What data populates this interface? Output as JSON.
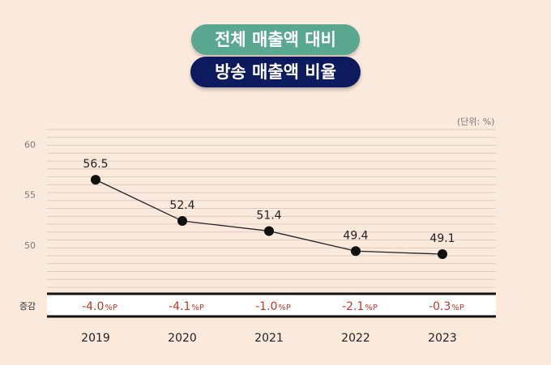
{
  "title_line1": "전체 매출액 대비",
  "title_line2": "방송 매출액 비율",
  "unit_label": "(단위: %)",
  "change_row_label": "증감",
  "change_unit": "%P",
  "chart_data": {
    "type": "line",
    "title": "전체 매출액 대비 방송 매출액 비율",
    "categories": [
      "2019",
      "2020",
      "2021",
      "2022",
      "2023"
    ],
    "series": [
      {
        "values": [
          56.5,
          52.4,
          51.4,
          49.4,
          49.1
        ]
      }
    ],
    "changes": [
      "-4.0",
      "-4.1",
      "-1.0",
      "-2.1",
      "-0.3"
    ],
    "yticks": [
      50,
      55,
      60
    ],
    "ylim": [
      45.8,
      61.5
    ],
    "grid": true,
    "colors": {
      "line": "#222222",
      "point": "#111111",
      "change": "#c0392b",
      "grid": "#cfc4bb"
    }
  }
}
